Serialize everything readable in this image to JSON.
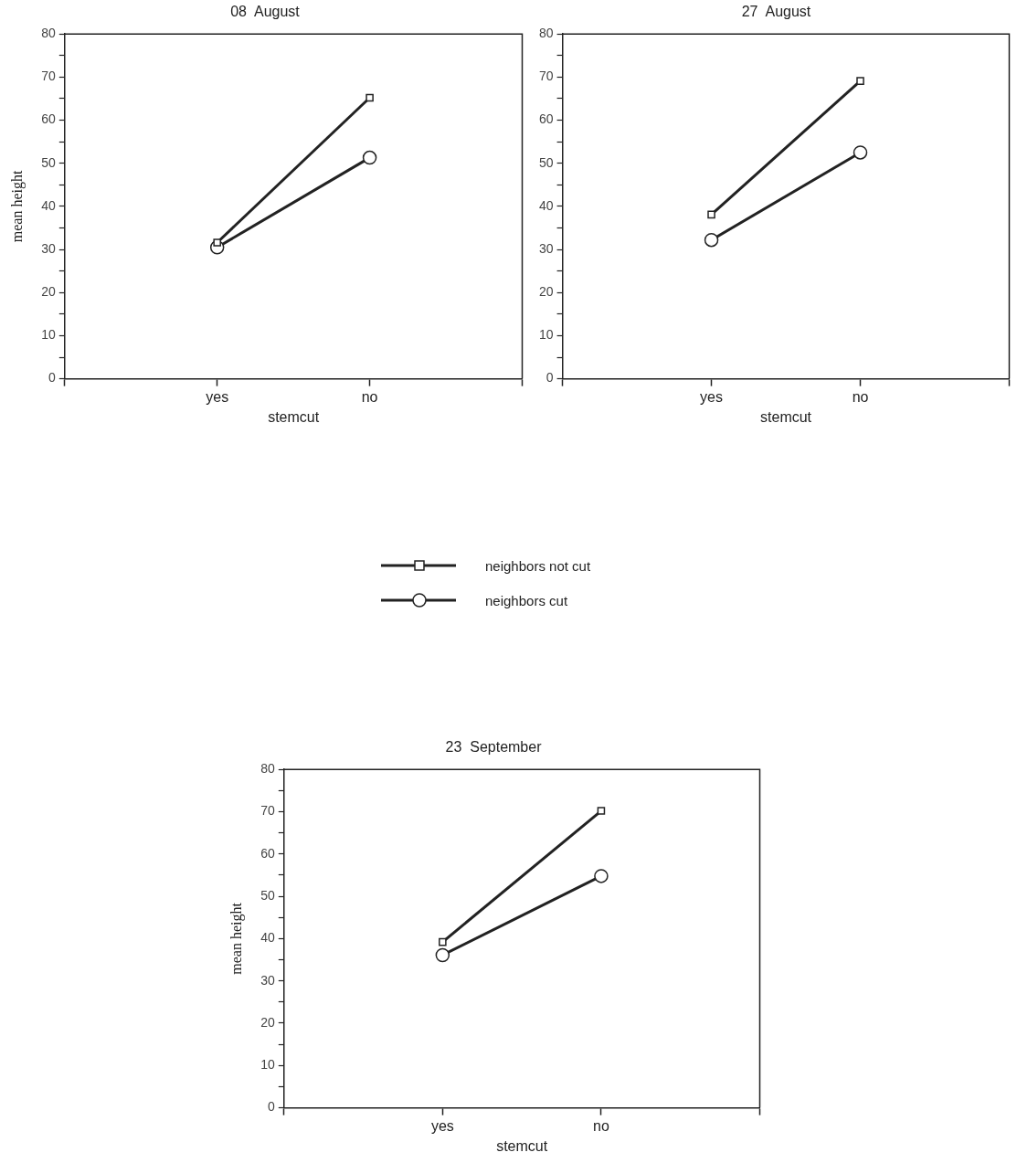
{
  "chart_data": [
    {
      "type": "line",
      "title": "08  August",
      "xlabel": "stemcut",
      "ylabel": "mean height",
      "categories": [
        "yes",
        "no"
      ],
      "ylim": [
        0,
        80
      ],
      "yticks": [
        0,
        {
          "value": 5,
          "label": null
        },
        10,
        {
          "value": 15,
          "label": null
        },
        20,
        {
          "value": 25,
          "label": null
        },
        30,
        {
          "value": 35,
          "label": null
        },
        40,
        {
          "value": 45,
          "label": null
        },
        50,
        {
          "value": 55,
          "label": null
        },
        60,
        {
          "value": 65,
          "label": null
        },
        70,
        {
          "value": 75,
          "label": null
        },
        80
      ],
      "grid": false,
      "legend": "bottom",
      "line_style": "solid",
      "series": [
        {
          "name": "neighbors not cut",
          "color": "#222222",
          "marker": "square",
          "values": [
            31.6,
            65.2
          ]
        },
        {
          "name": "neighbors cut",
          "color": "#222222",
          "marker": "circle",
          "values": [
            30.5,
            51.3
          ]
        }
      ]
    },
    {
      "type": "line",
      "title": "27  August",
      "xlabel": "stemcut",
      "categories": [
        "yes",
        "no"
      ],
      "ylim": [
        0,
        80
      ],
      "yticks": [
        0,
        {
          "value": 5,
          "label": null
        },
        10,
        {
          "value": 15,
          "label": null
        },
        20,
        {
          "value": 25,
          "label": null
        },
        30,
        {
          "value": 35,
          "label": null
        },
        40,
        {
          "value": 45,
          "label": null
        },
        50,
        {
          "value": 55,
          "label": null
        },
        60,
        {
          "value": 65,
          "label": null
        },
        70,
        {
          "value": 75,
          "label": null
        },
        80
      ],
      "grid": false,
      "line_style": "solid",
      "series": [
        {
          "color": "#222222",
          "marker": "square",
          "values": [
            38.1,
            69.1
          ]
        },
        {
          "color": "#222222",
          "marker": "circle",
          "values": [
            32.2,
            52.5
          ]
        }
      ]
    },
    {
      "type": "line",
      "title": "23  September",
      "xlabel": "stemcut",
      "ylabel": "mean height",
      "categories": [
        "yes",
        "no"
      ],
      "ylim": [
        0,
        80
      ],
      "yticks": [
        0,
        {
          "value": 5,
          "label": null
        },
        10,
        {
          "value": 15,
          "label": null
        },
        20,
        {
          "value": 25,
          "label": null
        },
        30,
        {
          "value": 35,
          "label": null
        },
        40,
        {
          "value": 45,
          "label": null
        },
        50,
        {
          "value": 55,
          "label": null
        },
        60,
        {
          "value": 65,
          "label": null
        },
        70,
        {
          "value": 75,
          "label": null
        },
        80
      ],
      "grid": false,
      "line_style": "solid",
      "series": [
        {
          "color": "#222222",
          "marker": "square",
          "values": [
            39.2,
            70.2
          ]
        },
        {
          "color": "#222222",
          "marker": "circle",
          "values": [
            36.1,
            54.8
          ]
        }
      ]
    }
  ]
}
